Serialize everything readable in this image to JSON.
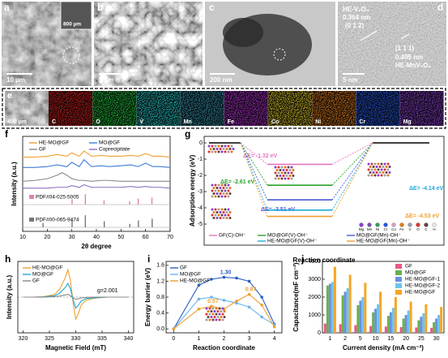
{
  "images": [
    {
      "label": "a",
      "scale_bar": "10 µm",
      "inset_scale_bar": "800 µm"
    },
    {
      "label": "b",
      "scale_bar": "1 µm"
    },
    {
      "label": "c",
      "scale_bar": "200 nm"
    },
    {
      "label": "d",
      "scale_bar": "5 nm",
      "phase_1": "HE-V₂O₃",
      "spacing_1": "0.364 nm",
      "plane_1": "(0 1 2)",
      "plane_2": "(1 1 1)",
      "spacing_2": "0.495 nm",
      "phase_2": "HE-MnV₂O₄"
    }
  ],
  "maps": {
    "label": "e",
    "scale_bar": "400 µm",
    "elements": [
      {
        "name": "C",
        "color": "#d61c1c"
      },
      {
        "name": "O",
        "color": "#1fc43a"
      },
      {
        "name": "V",
        "color": "#22c4c4"
      },
      {
        "name": "Mn",
        "color": "#2f8fa8"
      },
      {
        "name": "Fe",
        "color": "#b02ed0"
      },
      {
        "name": "Co",
        "color": "#d8c226"
      },
      {
        "name": "Ni",
        "color": "#e07a1a"
      },
      {
        "name": "Cr",
        "color": "#2456e0"
      },
      {
        "name": "Mg",
        "color": "#8a3ed0"
      }
    ]
  },
  "chart_data": [
    {
      "type": "line",
      "label": "f",
      "xlabel": "2θ degree",
      "ylabel": "Intensity (a.u.)",
      "xlim": [
        10,
        70
      ],
      "xticks": [
        10,
        20,
        30,
        40,
        50,
        60,
        70
      ],
      "ylim": [
        0,
        11
      ],
      "x": [
        10,
        15,
        20,
        24,
        26,
        28,
        30,
        33,
        35,
        38,
        42,
        45,
        50,
        54,
        57,
        60,
        63,
        66,
        70
      ],
      "series": [
        {
          "name": "HE-MO@GF",
          "color": "#f0a030",
          "values": [
            8.6,
            8.6,
            8.7,
            8.9,
            8.8,
            8.7,
            9.1,
            8.7,
            9.3,
            8.7,
            8.8,
            8.7,
            8.7,
            8.8,
            8.7,
            9.0,
            8.7,
            8.7,
            8.6
          ]
        },
        {
          "name": "MO@GF",
          "color": "#3d7bd9",
          "values": [
            7.4,
            7.4,
            7.5,
            7.7,
            7.6,
            7.5,
            8.0,
            7.5,
            8.3,
            7.5,
            7.6,
            7.5,
            7.6,
            7.7,
            7.5,
            7.9,
            7.5,
            7.5,
            7.4
          ]
        },
        {
          "name": "GF",
          "color": "#888888",
          "values": [
            5.8,
            5.9,
            6.1,
            6.5,
            6.8,
            6.5,
            6.1,
            5.9,
            5.9,
            5.8,
            5.9,
            5.9,
            5.8,
            5.8,
            5.8,
            5.8,
            5.8,
            5.8,
            5.8
          ]
        },
        {
          "name": "Coprecipitate",
          "color": "#8a6fbf",
          "values": [
            5.0,
            5.0,
            5.0,
            5.1,
            5.1,
            5.1,
            5.3,
            5.1,
            5.4,
            5.1,
            5.1,
            5.1,
            5.1,
            5.2,
            5.1,
            5.2,
            5.1,
            5.1,
            5.0
          ]
        }
      ],
      "references": [
        {
          "name": "PDF#04-025-5005",
          "color": "#e47fb0",
          "x": [
            30.1,
            35.5,
            43.1,
            53.5,
            57.0,
            62.6
          ],
          "values": [
            0.6,
            1.2,
            0.5,
            0.4,
            0.7,
            0.8
          ]
        },
        {
          "name": "PDF#00-065-9474",
          "color": "#777777",
          "x": [
            18.3,
            30.1,
            35.5,
            43.2,
            53.6,
            57.1,
            62.7
          ],
          "values": [
            0.5,
            0.9,
            1.4,
            0.7,
            0.4,
            0.8,
            1.0
          ]
        }
      ]
    },
    {
      "type": "step",
      "label": "g",
      "xlabel": "Reaction coordinate",
      "ylabel": "Adsorption energy (eV)",
      "ylim": [
        -6.3,
        0.4
      ],
      "yticks": [
        0,
        -1,
        -2,
        -3,
        -4,
        -5
      ],
      "reference_energy": 0,
      "series": [
        {
          "name": "GF(C)-OH⁻",
          "color": "#e377c2",
          "values": [
            -1.32
          ],
          "value_labels": [
            "ΔE= -1.32 eV"
          ]
        },
        {
          "name": "MO@GF(V)-OH⁻",
          "color": "#2ca02c",
          "values": [
            -2.61
          ],
          "value_labels": [
            "ΔE= -2.61 eV"
          ]
        },
        {
          "name": "MO@GF(Mn)-OH⁻",
          "color": "#4a5ad8",
          "values": [
            -3.51
          ],
          "value_labels": [
            "ΔE= -3.51 eV"
          ]
        },
        {
          "name": "HE-MO@GF(V)-OH⁻",
          "color": "#1fa8d8",
          "values": [
            -4.14
          ],
          "value_labels": [
            "ΔE= -4.14 eV"
          ]
        },
        {
          "name": "HE-MO@GF(Mn)-OH⁻",
          "color": "#f0a030",
          "values": [
            -4.53
          ],
          "value_labels": [
            "ΔE= -4.53 eV"
          ]
        }
      ],
      "atom_legend": [
        {
          "name": "Mg",
          "color": "#8a3ed0"
        },
        {
          "name": "Mn",
          "color": "#7a4ea8"
        },
        {
          "name": "Ni",
          "color": "#3a9a5a"
        },
        {
          "name": "Cr",
          "color": "#2456e0"
        },
        {
          "name": "Co",
          "color": "#d8a0c0"
        },
        {
          "name": "Fe",
          "color": "#e07a1a"
        },
        {
          "name": "V",
          "color": "#a0a0a0"
        },
        {
          "name": "O",
          "color": "#e03030"
        },
        {
          "name": "C",
          "color": "#604040"
        },
        {
          "name": "H",
          "color": "#e8e8e8"
        }
      ]
    },
    {
      "type": "line",
      "label": "h",
      "xlabel": "Magnetic Field (mT)",
      "ylabel": "Intensity (a.u.)",
      "xlim": [
        319,
        341
      ],
      "xticks": [
        320,
        325,
        330,
        335,
        340
      ],
      "ylim": [
        -1.3,
        1.3
      ],
      "annotation": "g=2.001",
      "x": [
        320,
        322,
        324,
        326,
        327,
        328,
        328.5,
        329,
        329.5,
        330,
        330.5,
        331,
        332,
        334,
        336,
        338,
        340
      ],
      "series": [
        {
          "name": "HE-MO@GF",
          "color": "#f0a030",
          "values": [
            0,
            0,
            0.02,
            0.1,
            0.3,
            0.7,
            1.0,
            0.6,
            -0.2,
            -0.8,
            -0.6,
            -0.3,
            -0.1,
            -0.03,
            0,
            0,
            0
          ]
        },
        {
          "name": "MO@GF",
          "color": "#1fa8d8",
          "values": [
            0,
            0,
            0.01,
            0.05,
            0.15,
            0.35,
            0.5,
            0.3,
            -0.1,
            -0.4,
            -0.3,
            -0.15,
            -0.05,
            -0.02,
            0,
            0,
            0
          ]
        },
        {
          "name": "GF",
          "color": "#888888",
          "values": [
            0,
            0,
            0,
            0.02,
            0.04,
            0.08,
            0.1,
            0.05,
            -0.03,
            -0.08,
            -0.06,
            -0.03,
            -0.01,
            0,
            0,
            0,
            0
          ]
        }
      ]
    },
    {
      "type": "line",
      "label": "i",
      "xlabel": "Reaction coordinate",
      "ylabel": "Energy barrier (eV)",
      "xlim": [
        -0.3,
        4.3
      ],
      "xticks": [
        0,
        1,
        2,
        3,
        4
      ],
      "ylim": [
        -0.1,
        1.7
      ],
      "yticks": [
        {
          "value": 0,
          "label": "0.0"
        },
        0.4,
        0.8,
        1.2,
        1.6
      ],
      "x": [
        0,
        1,
        1.5,
        2,
        2.5,
        3,
        3.5,
        4
      ],
      "series": [
        {
          "name": "GF",
          "color": "#2a5fc0",
          "values": [
            0,
            1.1,
            1.25,
            1.3,
            1.28,
            1.2,
            0.8,
            0.12
          ],
          "value_labels": [
            null,
            null,
            null,
            "1.30",
            null,
            null,
            null,
            null
          ]
        },
        {
          "name": "MO@GF",
          "color": "#6cb4f0",
          "values": [
            0,
            0.75,
            0.8,
            0.72,
            0.65,
            0.55,
            0.3,
            0.1
          ],
          "value_labels": [
            null,
            null,
            null,
            null,
            null,
            null,
            null,
            null
          ]
        },
        {
          "name": "HE-MO@GF",
          "color": "#f0a030",
          "values": [
            0,
            0.5,
            0.57,
            0.5,
            0.7,
            0.87,
            0.6,
            0.05
          ],
          "value_labels": [
            null,
            null,
            "0.57",
            null,
            null,
            "0.87",
            null,
            null
          ]
        }
      ]
    },
    {
      "type": "bar",
      "label": "j",
      "xlabel": "Current density (mA cm⁻²)",
      "ylabel": "Capacitance(mF cm⁻²)",
      "categories": [
        "1",
        "2",
        "5",
        "10",
        "15",
        "20",
        "25",
        "30"
      ],
      "ylim": [
        0,
        4000
      ],
      "yticks": [
        0,
        1000,
        2000,
        3000,
        4000
      ],
      "series": [
        {
          "name": "GF",
          "color": "#e8588a",
          "values": [
            520,
            480,
            430,
            380,
            350,
            320,
            300,
            280
          ]
        },
        {
          "name": "MO@GF",
          "color": "#6ab04c",
          "values": [
            2650,
            2100,
            1550,
            1150,
            950,
            800,
            700,
            600
          ]
        },
        {
          "name": "HE-MO@GF-1",
          "color": "#6a8fe0",
          "values": [
            2750,
            2300,
            1800,
            1350,
            1150,
            1000,
            900,
            800
          ]
        },
        {
          "name": "HE-MO@GF-2",
          "color": "#6cc4f0",
          "values": [
            2850,
            2500,
            2000,
            1600,
            1400,
            1250,
            1100,
            1000
          ]
        },
        {
          "name": "HE-MO@GF",
          "color": "#f5a623",
          "values": [
            3700,
            3250,
            2800,
            2300,
            2000,
            1750,
            1600,
            1450
          ]
        }
      ]
    }
  ]
}
